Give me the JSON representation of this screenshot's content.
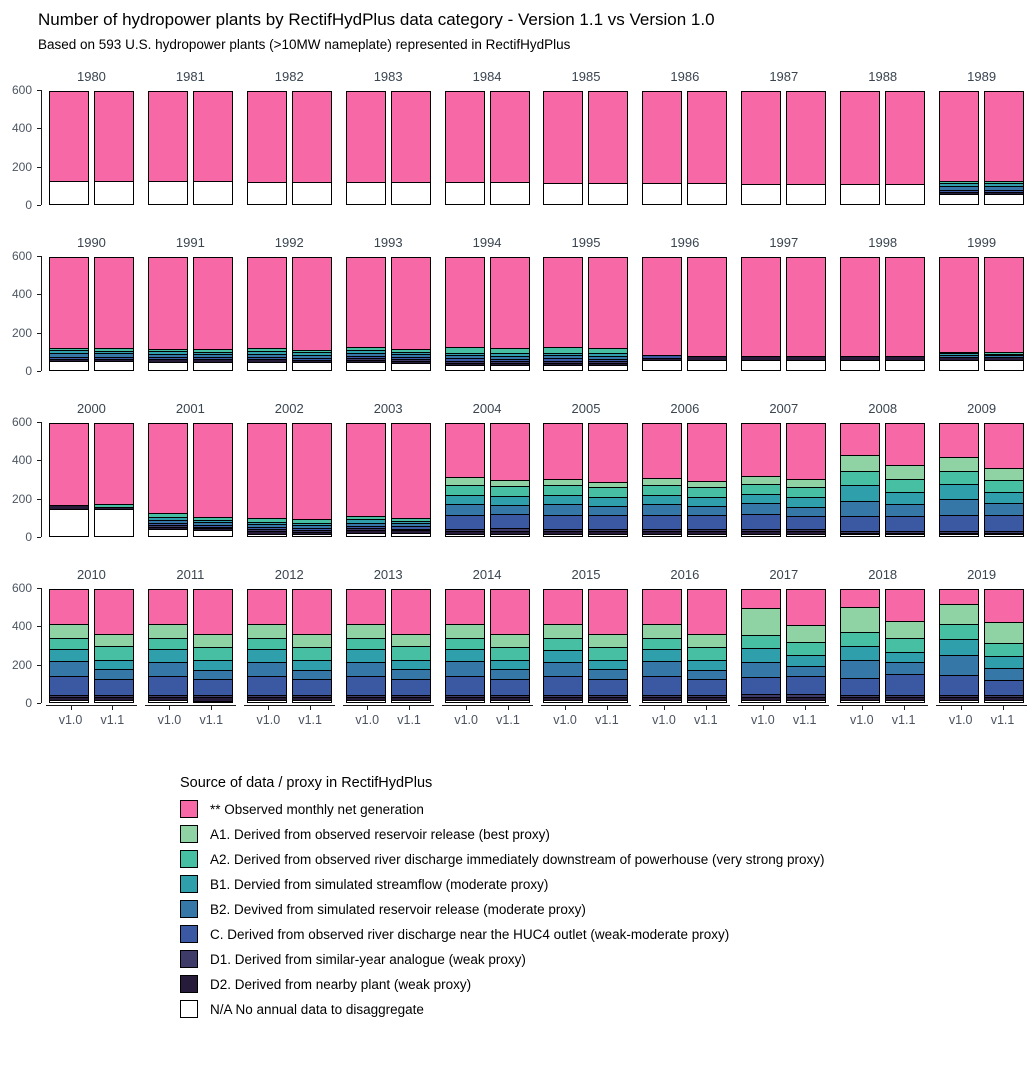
{
  "title": "Number of hydropower plants by RectifHydPlus data category - Version 1.1 vs Version 1.0",
  "subtitle": "Based on 593 U.S. hydropower plants (>10MW nameplate) represented in RectifHydPlus",
  "legend": {
    "title": "Source of data / proxy in RectifHydPlus"
  },
  "chart_data": {
    "type": "bar",
    "stacked": true,
    "facet_by": "year",
    "facet_rows": 4,
    "facet_cols": 10,
    "x_categories": [
      "v1.0",
      "v1.1"
    ],
    "y_axis": {
      "ticks": [
        0,
        200,
        400,
        600
      ],
      "lim": [
        0,
        600
      ]
    },
    "total_per_bar": 593,
    "grid": false,
    "legend_position": "bottom-left",
    "stack_order_note": "values arrays are ordered legend-top to legend-bottom; bars stack with last value at the bottom",
    "categories": [
      {
        "key": "obs",
        "label": "** Observed monthly net generation",
        "color": "#F768A7"
      },
      {
        "key": "a1",
        "label": "A1. Derived from observed reservoir release (best proxy)",
        "color": "#8FD2A4"
      },
      {
        "key": "a2",
        "label": "A2. Derived from observed river discharge immediately downstream of powerhouse (very strong proxy)",
        "color": "#47BFA3"
      },
      {
        "key": "b1",
        "label": "B1. Dervied from simulated streamflow (moderate proxy)",
        "color": "#2E9FAB"
      },
      {
        "key": "b2",
        "label": "B2. Devived from simulated reservoir release (moderate proxy)",
        "color": "#3578A8"
      },
      {
        "key": "c",
        "label": "C. Derived from observed river discharge near the HUC4 outlet (weak-moderate proxy)",
        "color": "#3B58A2"
      },
      {
        "key": "d1",
        "label": "D1. Derived from similar-year analogue (weak proxy)",
        "color": "#3F3B69"
      },
      {
        "key": "d2",
        "label": "D2. Derived from nearby plant (weak proxy)",
        "color": "#261C39"
      },
      {
        "key": "na",
        "label": "N/A No annual data to disaggregate",
        "color": "#FFFFFF"
      }
    ],
    "years": [
      {
        "year": 1980,
        "v1.0": [
          473,
          0,
          0,
          0,
          0,
          0,
          0,
          0,
          120
        ],
        "v1.1": [
          473,
          0,
          0,
          0,
          0,
          0,
          0,
          0,
          120
        ]
      },
      {
        "year": 1981,
        "v1.0": [
          473,
          0,
          0,
          0,
          0,
          0,
          0,
          0,
          120
        ],
        "v1.1": [
          473,
          0,
          0,
          0,
          0,
          0,
          0,
          0,
          120
        ]
      },
      {
        "year": 1982,
        "v1.0": [
          478,
          0,
          0,
          0,
          0,
          0,
          0,
          0,
          115
        ],
        "v1.1": [
          478,
          0,
          0,
          0,
          0,
          0,
          0,
          0,
          115
        ]
      },
      {
        "year": 1983,
        "v1.0": [
          481,
          0,
          0,
          0,
          0,
          0,
          0,
          0,
          112
        ],
        "v1.1": [
          481,
          0,
          0,
          0,
          0,
          0,
          0,
          0,
          112
        ]
      },
      {
        "year": 1984,
        "v1.0": [
          483,
          0,
          0,
          0,
          0,
          0,
          0,
          0,
          110
        ],
        "v1.1": [
          483,
          0,
          0,
          0,
          0,
          0,
          0,
          0,
          110
        ]
      },
      {
        "year": 1985,
        "v1.0": [
          486,
          0,
          0,
          0,
          0,
          0,
          0,
          0,
          107
        ],
        "v1.1": [
          486,
          0,
          0,
          0,
          0,
          0,
          0,
          0,
          107
        ]
      },
      {
        "year": 1986,
        "v1.0": [
          488,
          0,
          0,
          0,
          0,
          0,
          0,
          0,
          105
        ],
        "v1.1": [
          488,
          0,
          0,
          0,
          0,
          0,
          0,
          0,
          105
        ]
      },
      {
        "year": 1987,
        "v1.0": [
          491,
          0,
          0,
          0,
          0,
          0,
          0,
          0,
          102
        ],
        "v1.1": [
          491,
          0,
          0,
          0,
          0,
          0,
          0,
          0,
          102
        ]
      },
      {
        "year": 1988,
        "v1.0": [
          493,
          0,
          0,
          0,
          0,
          0,
          0,
          0,
          100
        ],
        "v1.1": [
          493,
          0,
          0,
          0,
          0,
          0,
          0,
          0,
          100
        ]
      },
      {
        "year": 1989,
        "v1.0": [
          498,
          0,
          8,
          10,
          18,
          4,
          0,
          5,
          50
        ],
        "v1.1": [
          498,
          0,
          8,
          10,
          18,
          4,
          0,
          5,
          50
        ]
      },
      {
        "year": 1990,
        "v1.0": [
          503,
          0,
          8,
          10,
          14,
          5,
          0,
          8,
          45
        ],
        "v1.1": [
          505,
          0,
          8,
          9,
          13,
          5,
          0,
          8,
          45
        ]
      },
      {
        "year": 1991,
        "v1.0": [
          508,
          0,
          8,
          10,
          12,
          5,
          0,
          8,
          42
        ],
        "v1.1": [
          510,
          0,
          8,
          9,
          11,
          5,
          0,
          8,
          42
        ]
      },
      {
        "year": 1992,
        "v1.0": [
          503,
          0,
          10,
          12,
          14,
          6,
          0,
          8,
          40
        ],
        "v1.1": [
          513,
          0,
          8,
          10,
          12,
          5,
          0,
          5,
          40
        ]
      },
      {
        "year": 1993,
        "v1.0": [
          503,
          0,
          10,
          12,
          12,
          6,
          5,
          5,
          40
        ],
        "v1.1": [
          513,
          0,
          10,
          10,
          10,
          5,
          5,
          5,
          35
        ]
      },
      {
        "year": 1994,
        "v1.0": [
          503,
          0,
          25,
          10,
          12,
          8,
          5,
          5,
          25
        ],
        "v1.1": [
          508,
          0,
          25,
          8,
          10,
          8,
          5,
          4,
          25
        ]
      },
      {
        "year": 1995,
        "v1.0": [
          503,
          0,
          25,
          10,
          12,
          8,
          5,
          5,
          25
        ],
        "v1.1": [
          508,
          0,
          25,
          8,
          10,
          8,
          5,
          4,
          25
        ]
      },
      {
        "year": 1996,
        "v1.0": [
          530,
          0,
          0,
          0,
          0,
          8,
          0,
          5,
          50
        ],
        "v1.1": [
          528,
          0,
          0,
          0,
          0,
          0,
          0,
          15,
          50
        ]
      },
      {
        "year": 1997,
        "v1.0": [
          528,
          0,
          0,
          0,
          0,
          0,
          0,
          15,
          50
        ],
        "v1.1": [
          528,
          0,
          0,
          0,
          0,
          0,
          0,
          15,
          50
        ]
      },
      {
        "year": 1998,
        "v1.0": [
          528,
          0,
          0,
          0,
          0,
          0,
          0,
          15,
          50
        ],
        "v1.1": [
          528,
          0,
          0,
          0,
          0,
          0,
          0,
          15,
          50
        ]
      },
      {
        "year": 1999,
        "v1.0": [
          518,
          0,
          5,
          5,
          5,
          0,
          0,
          10,
          50
        ],
        "v1.1": [
          520,
          0,
          5,
          4,
          4,
          0,
          0,
          10,
          50
        ]
      },
      {
        "year": 2000,
        "v1.0": [
          438,
          0,
          0,
          0,
          0,
          0,
          0,
          15,
          140
        ],
        "v1.1": [
          433,
          0,
          10,
          0,
          0,
          0,
          0,
          10,
          140
        ]
      },
      {
        "year": 2001,
        "v1.0": [
          505,
          0,
          14,
          12,
          10,
          8,
          4,
          5,
          35
        ],
        "v1.1": [
          523,
          0,
          12,
          8,
          8,
          6,
          4,
          4,
          28
        ]
      },
      {
        "year": 2002,
        "v1.0": [
          528,
          0,
          20,
          8,
          8,
          6,
          4,
          12,
          7
        ],
        "v1.1": [
          538,
          0,
          15,
          8,
          8,
          6,
          4,
          8,
          6
        ]
      },
      {
        "year": 2003,
        "v1.0": [
          518,
          0,
          15,
          12,
          12,
          10,
          5,
          8,
          13
        ],
        "v1.1": [
          528,
          0,
          12,
          10,
          10,
          8,
          5,
          8,
          12
        ]
      },
      {
        "year": 2004,
        "v1.0": [
          300,
          40,
          50,
          50,
          55,
          75,
          8,
          10,
          5
        ],
        "v1.1": [
          320,
          25,
          55,
          45,
          45,
          75,
          10,
          12,
          6
        ]
      },
      {
        "year": 2005,
        "v1.0": [
          310,
          30,
          50,
          50,
          55,
          75,
          8,
          10,
          5
        ],
        "v1.1": [
          330,
          25,
          50,
          45,
          45,
          75,
          8,
          10,
          5
        ]
      },
      {
        "year": 2006,
        "v1.0": [
          305,
          35,
          50,
          50,
          55,
          75,
          8,
          10,
          5
        ],
        "v1.1": [
          325,
          30,
          50,
          45,
          45,
          75,
          8,
          10,
          5
        ]
      },
      {
        "year": 2007,
        "v1.0": [
          295,
          40,
          50,
          50,
          55,
          80,
          8,
          10,
          5
        ],
        "v1.1": [
          315,
          35,
          55,
          50,
          45,
          70,
          8,
          10,
          5
        ]
      },
      {
        "year": 2008,
        "v1.0": [
          175,
          85,
          75,
          85,
          80,
          80,
          5,
          5,
          3
        ],
        "v1.1": [
          235,
          70,
          70,
          65,
          60,
          80,
          5,
          5,
          3
        ]
      },
      {
        "year": 2009,
        "v1.0": [
          185,
          75,
          70,
          80,
          85,
          85,
          5,
          5,
          3
        ],
        "v1.1": [
          250,
          60,
          65,
          60,
          60,
          85,
          5,
          5,
          3
        ]
      },
      {
        "year": 2010,
        "v1.0": [
          195,
          70,
          60,
          65,
          75,
          105,
          8,
          12,
          3
        ],
        "v1.1": [
          250,
          65,
          70,
          50,
          50,
          85,
          8,
          12,
          3
        ]
      },
      {
        "year": 2011,
        "v1.0": [
          195,
          72,
          60,
          65,
          75,
          103,
          8,
          12,
          3
        ],
        "v1.1": [
          250,
          66,
          70,
          50,
          50,
          84,
          8,
          12,
          3
        ]
      },
      {
        "year": 2012,
        "v1.0": [
          195,
          70,
          62,
          65,
          75,
          103,
          8,
          12,
          3
        ],
        "v1.1": [
          252,
          64,
          70,
          50,
          50,
          84,
          8,
          12,
          3
        ]
      },
      {
        "year": 2013,
        "v1.0": [
          193,
          72,
          60,
          65,
          75,
          105,
          8,
          12,
          3
        ],
        "v1.1": [
          250,
          65,
          70,
          50,
          50,
          85,
          8,
          12,
          3
        ]
      },
      {
        "year": 2014,
        "v1.0": [
          195,
          70,
          60,
          65,
          75,
          105,
          8,
          12,
          3
        ],
        "v1.1": [
          252,
          65,
          70,
          48,
          50,
          85,
          8,
          12,
          3
        ]
      },
      {
        "year": 2015,
        "v1.0": [
          193,
          72,
          62,
          63,
          75,
          105,
          8,
          12,
          3
        ],
        "v1.1": [
          250,
          66,
          70,
          48,
          50,
          86,
          8,
          12,
          3
        ]
      },
      {
        "year": 2016,
        "v1.0": [
          195,
          70,
          60,
          65,
          75,
          105,
          8,
          12,
          3
        ],
        "v1.1": [
          252,
          64,
          70,
          50,
          50,
          84,
          8,
          12,
          3
        ]
      },
      {
        "year": 2017,
        "v1.0": [
          100,
          150,
          70,
          70,
          85,
          90,
          10,
          15,
          3
        ],
        "v1.1": [
          200,
          90,
          70,
          55,
          55,
          95,
          10,
          15,
          3
        ]
      },
      {
        "year": 2018,
        "v1.0": [
          95,
          140,
          70,
          75,
          100,
          90,
          8,
          12,
          3
        ],
        "v1.1": [
          175,
          90,
          75,
          55,
          60,
          115,
          8,
          12,
          3
        ]
      },
      {
        "year": 2019,
        "v1.0": [
          80,
          105,
          80,
          85,
          110,
          108,
          8,
          14,
          3
        ],
        "v1.1": [
          180,
          115,
          70,
          65,
          60,
          80,
          8,
          12,
          3
        ]
      }
    ]
  }
}
